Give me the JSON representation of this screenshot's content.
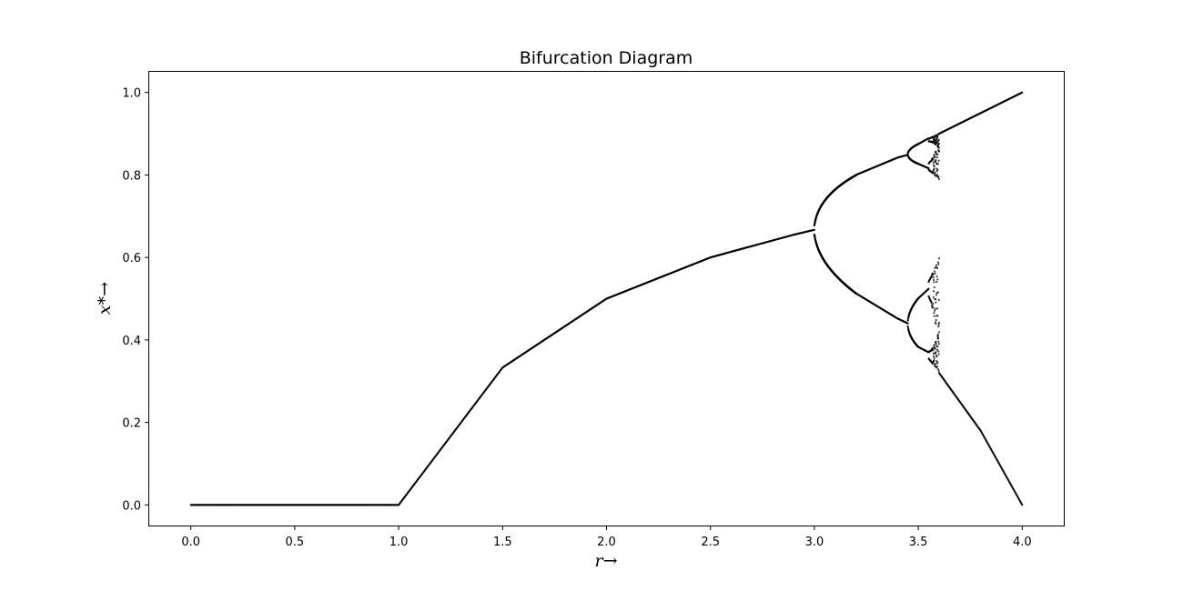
{
  "chart_data": {
    "type": "scatter",
    "title": "Bifurcation Diagram",
    "xlabel": "r→",
    "ylabel": "x*→",
    "xlim": [
      -0.2,
      4.2
    ],
    "ylim": [
      -0.05,
      1.05
    ],
    "xticks": [
      0.0,
      0.5,
      1.0,
      1.5,
      2.0,
      2.5,
      3.0,
      3.5,
      4.0
    ],
    "xtick_labels": [
      "0.0",
      "0.5",
      "1.0",
      "1.5",
      "2.0",
      "2.5",
      "3.0",
      "3.5",
      "4.0"
    ],
    "yticks": [
      0.0,
      0.2,
      0.4,
      0.6,
      0.8,
      1.0
    ],
    "ytick_labels": [
      "0.0",
      "0.2",
      "0.4",
      "0.6",
      "0.8",
      "1.0"
    ],
    "grid": false,
    "legend": "none",
    "point_color": "#000000",
    "series": [
      {
        "r_values": [
          0.0,
          0.5,
          1.0,
          1.5,
          2.0,
          2.5,
          2.9,
          3.0,
          3.2,
          3.4,
          3.45,
          3.5,
          3.55,
          3.6,
          3.8,
          4.0
        ],
        "x_star": [
          [
            0.0
          ],
          [
            0.0
          ],
          [
            0.0
          ],
          [
            0.333
          ],
          [
            0.5
          ],
          [
            0.6
          ],
          [
            0.655
          ],
          [
            0.667
          ],
          [
            0.513,
            0.8
          ],
          [
            0.452,
            0.842
          ],
          [
            0.44,
            0.849
          ],
          [
            0.383,
            0.501,
            0.827,
            0.875
          ],
          [
            0.37,
            0.524,
            0.816,
            0.889
          ],
          [
            0.32,
            0.9
          ],
          [
            0.18,
            0.95
          ],
          [
            0.0,
            1.0
          ]
        ]
      }
    ]
  }
}
